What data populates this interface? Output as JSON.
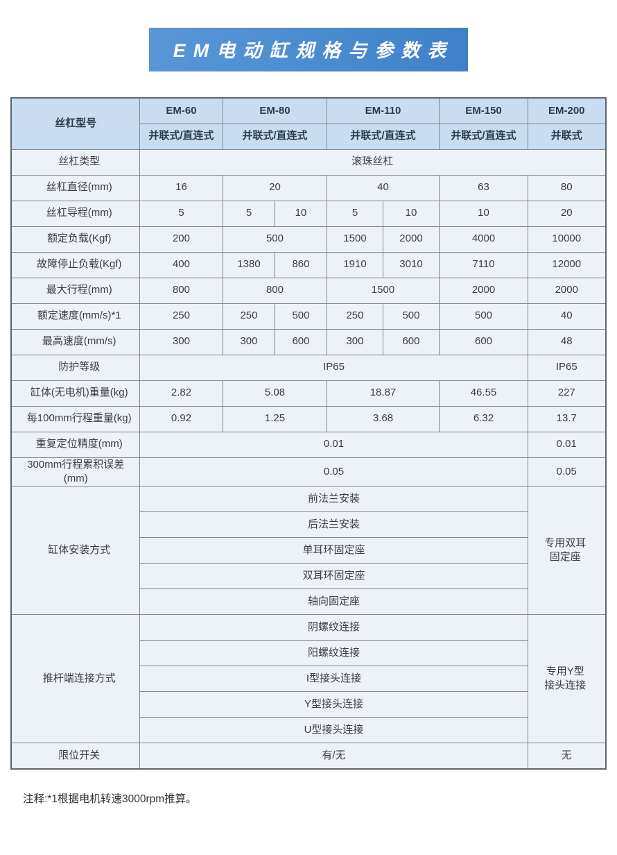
{
  "title": "EM电动缸规格与参数表",
  "note": "注释:*1根据电机转速3000rpm推算。",
  "colors": {
    "banner_blue_light": "#5a96d8",
    "banner_blue_dark": "#3f81c8",
    "header_bg": "#c9dcf2",
    "row_bg": "#edf1f8",
    "border_gray": "#828689",
    "header_text": "#2b3c52",
    "body_text": "#3d3d3d",
    "title_text": "#ffffff"
  },
  "table": {
    "header": {
      "label": "丝杠型号",
      "models": [
        "EM-60",
        "EM-80",
        "EM-110",
        "EM-150",
        "EM-200"
      ],
      "types": [
        "并联式/直连式",
        "并联式/直连式",
        "并联式/直连式",
        "并联式/直连式",
        "并联式"
      ]
    },
    "rows": [
      {
        "cells": [
          {
            "t": "丝杠类型",
            "h": 1
          },
          {
            "t": "滚珠丝杠",
            "cs": 7
          }
        ]
      },
      {
        "cells": [
          {
            "t": "丝杠直径(mm)",
            "h": 1
          },
          {
            "t": "16"
          },
          {
            "t": "20",
            "cs": 2
          },
          {
            "t": "40",
            "cs": 2
          },
          {
            "t": "63"
          },
          {
            "t": "80"
          }
        ]
      },
      {
        "cells": [
          {
            "t": "丝杠导程(mm)",
            "h": 1
          },
          {
            "t": "5"
          },
          {
            "t": "5"
          },
          {
            "t": "10"
          },
          {
            "t": "5"
          },
          {
            "t": "10"
          },
          {
            "t": "10"
          },
          {
            "t": "20"
          }
        ]
      },
      {
        "cells": [
          {
            "t": "额定负载(Kgf)",
            "h": 1
          },
          {
            "t": "200"
          },
          {
            "t": "500",
            "cs": 2
          },
          {
            "t": "1500"
          },
          {
            "t": "2000"
          },
          {
            "t": "4000"
          },
          {
            "t": "10000"
          }
        ]
      },
      {
        "cells": [
          {
            "t": "故障停止负载(Kgf)",
            "h": 1
          },
          {
            "t": "400"
          },
          {
            "t": "1380"
          },
          {
            "t": "860"
          },
          {
            "t": "1910"
          },
          {
            "t": "3010"
          },
          {
            "t": "7110"
          },
          {
            "t": "12000"
          }
        ]
      },
      {
        "cells": [
          {
            "t": "最大行程(mm)",
            "h": 1
          },
          {
            "t": "800"
          },
          {
            "t": "800",
            "cs": 2
          },
          {
            "t": "1500",
            "cs": 2
          },
          {
            "t": "2000"
          },
          {
            "t": "2000"
          }
        ]
      },
      {
        "cells": [
          {
            "t": "额定速度(mm/s)*1",
            "h": 1
          },
          {
            "t": "250"
          },
          {
            "t": "250"
          },
          {
            "t": "500"
          },
          {
            "t": "250"
          },
          {
            "t": "500"
          },
          {
            "t": "500"
          },
          {
            "t": "40"
          }
        ]
      },
      {
        "cells": [
          {
            "t": "最高速度(mm/s)",
            "h": 1
          },
          {
            "t": "300"
          },
          {
            "t": "300"
          },
          {
            "t": "600"
          },
          {
            "t": "300"
          },
          {
            "t": "600"
          },
          {
            "t": "600"
          },
          {
            "t": "48"
          }
        ]
      },
      {
        "cells": [
          {
            "t": "防护等级",
            "h": 1
          },
          {
            "t": "IP65",
            "cs": 6
          },
          {
            "t": "IP65"
          }
        ]
      },
      {
        "cells": [
          {
            "t": "缸体(无电机)重量(kg)",
            "h": 1
          },
          {
            "t": "2.82"
          },
          {
            "t": "5.08",
            "cs": 2
          },
          {
            "t": "18.87",
            "cs": 2
          },
          {
            "t": "46.55"
          },
          {
            "t": "227"
          }
        ]
      },
      {
        "cells": [
          {
            "t": "每100mm行程重量(kg)",
            "h": 1
          },
          {
            "t": "0.92"
          },
          {
            "t": "1.25",
            "cs": 2
          },
          {
            "t": "3.68",
            "cs": 2
          },
          {
            "t": "6.32"
          },
          {
            "t": "13.7"
          }
        ]
      },
      {
        "cells": [
          {
            "t": "重复定位精度(mm)",
            "h": 1
          },
          {
            "t": "0.01",
            "cs": 6
          },
          {
            "t": "0.01"
          }
        ]
      },
      {
        "cells": [
          {
            "t": "300mm行程累积误差\n(mm)",
            "h": 1,
            "wrap": 1
          },
          {
            "t": "0.05",
            "cs": 6
          },
          {
            "t": "0.05"
          }
        ]
      },
      {
        "cells": [
          {
            "t": "缸体安装方式",
            "h": 1,
            "rs": 5
          },
          {
            "t": "前法兰安装",
            "cs": 6
          },
          {
            "t": "专用双耳\n固定座",
            "rs": 5,
            "wrap": 1
          }
        ]
      },
      {
        "cells": [
          {
            "t": "后法兰安装",
            "cs": 6
          }
        ]
      },
      {
        "cells": [
          {
            "t": "单耳环固定座",
            "cs": 6
          }
        ]
      },
      {
        "cells": [
          {
            "t": "双耳环固定座",
            "cs": 6
          }
        ]
      },
      {
        "cells": [
          {
            "t": "轴向固定座",
            "cs": 6
          }
        ]
      },
      {
        "cells": [
          {
            "t": "推杆端连接方式",
            "h": 1,
            "rs": 5
          },
          {
            "t": "阴螺纹连接",
            "cs": 6
          },
          {
            "t": "专用Y型\n接头连接",
            "rs": 5,
            "wrap": 1
          }
        ]
      },
      {
        "cells": [
          {
            "t": "阳螺纹连接",
            "cs": 6
          }
        ]
      },
      {
        "cells": [
          {
            "t": "I型接头连接",
            "cs": 6
          }
        ]
      },
      {
        "cells": [
          {
            "t": "Y型接头连接",
            "cs": 6
          }
        ]
      },
      {
        "cells": [
          {
            "t": "U型接头连接",
            "cs": 6
          }
        ]
      },
      {
        "cells": [
          {
            "t": "限位开关",
            "h": 1
          },
          {
            "t": "有/无",
            "cs": 6
          },
          {
            "t": "无"
          }
        ]
      }
    ]
  }
}
